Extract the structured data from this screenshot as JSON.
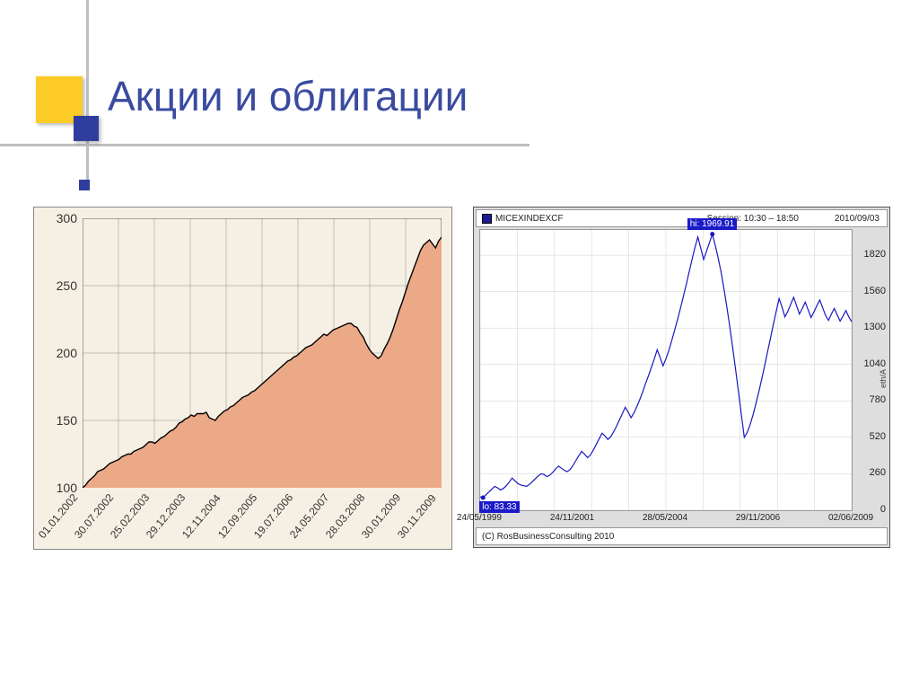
{
  "title": "Акции и облигации",
  "decor": {
    "yellow": "#fccb26",
    "blue": "#2f3e9e",
    "gray": "#bfbfbf"
  },
  "left_chart": {
    "type": "area",
    "background_color": "#f6f0e4",
    "plot_background": "#f6f0e4",
    "area_color": "#eca988",
    "line_color": "#000000",
    "line_width": 1.4,
    "grid_color": "#777777",
    "grid_width": 0.4,
    "ylim": [
      100,
      300
    ],
    "ytick_step": 50,
    "ytick_labels": [
      "100",
      "150",
      "200",
      "250",
      "300"
    ],
    "xtick_labels": [
      "01.01.2002",
      "30.07.2002",
      "25.02.2003",
      "29.12.2003",
      "12.11.2004",
      "12.09.2005",
      "19.07.2006",
      "24.05.2007",
      "28.03.2008",
      "30.01.2009",
      "30.11.2009"
    ],
    "series": [
      100,
      102,
      105,
      107,
      109,
      112,
      113,
      114,
      116,
      118,
      119,
      120,
      121,
      123,
      124,
      125,
      125,
      127,
      128,
      129,
      130,
      132,
      134,
      134,
      133,
      135,
      137,
      138,
      140,
      142,
      143,
      145,
      148,
      149,
      151,
      152,
      154,
      153,
      155,
      155,
      155,
      156,
      152,
      151,
      150,
      153,
      155,
      157,
      158,
      160,
      161,
      163,
      165,
      167,
      168,
      169,
      171,
      172,
      174,
      176,
      178,
      180,
      182,
      184,
      186,
      188,
      190,
      192,
      194,
      195,
      197,
      198,
      200,
      202,
      204,
      205,
      206,
      208,
      210,
      212,
      214,
      213,
      215,
      217,
      218,
      219,
      220,
      221,
      222,
      222,
      220,
      219,
      215,
      212,
      207,
      203,
      200,
      198,
      196,
      198,
      203,
      207,
      212,
      218,
      225,
      232,
      238,
      245,
      252,
      258,
      264,
      270,
      276,
      280,
      282,
      284,
      281,
      278,
      283,
      286
    ]
  },
  "right_chart": {
    "type": "line",
    "panel_background": "#dedede",
    "plot_background": "#ffffff",
    "line_color": "#1818c0",
    "line_width": 1.2,
    "grid_color": "#cfcfcf",
    "grid_width": 0.5,
    "header_symbol": "MICEXINDEXCF",
    "header_session": "Session: 10:30 – 18:50",
    "header_date": "2010/09/03",
    "footer_text": "(C) RosBusinessConsulting 2010",
    "yaxis_label": "eth/A",
    "ylim": [
      0,
      2000
    ],
    "ytick_labels": [
      "0",
      "260",
      "520",
      "780",
      "1040",
      "1300",
      "1560",
      "1820"
    ],
    "ytick_values": [
      0,
      260,
      520,
      780,
      1040,
      1300,
      1560,
      1820
    ],
    "xtick_labels": [
      "24/05/1999",
      "24/11/2001",
      "28/05/2004",
      "29/11/2006",
      "02/06/2009"
    ],
    "xtick_positions": [
      0,
      0.25,
      0.5,
      0.75,
      1.0
    ],
    "hi_label": "hi: 1969.91",
    "lo_label": "lo: 83.33",
    "series": [
      95,
      90,
      110,
      130,
      150,
      170,
      160,
      145,
      155,
      175,
      200,
      230,
      210,
      190,
      180,
      175,
      170,
      185,
      205,
      225,
      245,
      260,
      255,
      240,
      250,
      270,
      295,
      315,
      300,
      285,
      275,
      290,
      320,
      355,
      390,
      420,
      400,
      375,
      395,
      430,
      470,
      510,
      550,
      530,
      505,
      525,
      560,
      600,
      645,
      690,
      735,
      700,
      660,
      695,
      740,
      790,
      845,
      905,
      960,
      1020,
      1080,
      1145,
      1090,
      1030,
      1080,
      1140,
      1210,
      1285,
      1360,
      1440,
      1525,
      1610,
      1700,
      1790,
      1875,
      1950,
      1870,
      1790,
      1850,
      1910,
      1970,
      1890,
      1800,
      1700,
      1580,
      1450,
      1310,
      1160,
      1005,
      845,
      680,
      520,
      555,
      610,
      680,
      760,
      845,
      935,
      1030,
      1130,
      1225,
      1325,
      1420,
      1510,
      1450,
      1380,
      1420,
      1470,
      1520,
      1460,
      1400,
      1440,
      1485,
      1430,
      1375,
      1415,
      1460,
      1500,
      1445,
      1390,
      1355,
      1400,
      1440,
      1395,
      1350,
      1385,
      1425,
      1380,
      1345
    ]
  }
}
